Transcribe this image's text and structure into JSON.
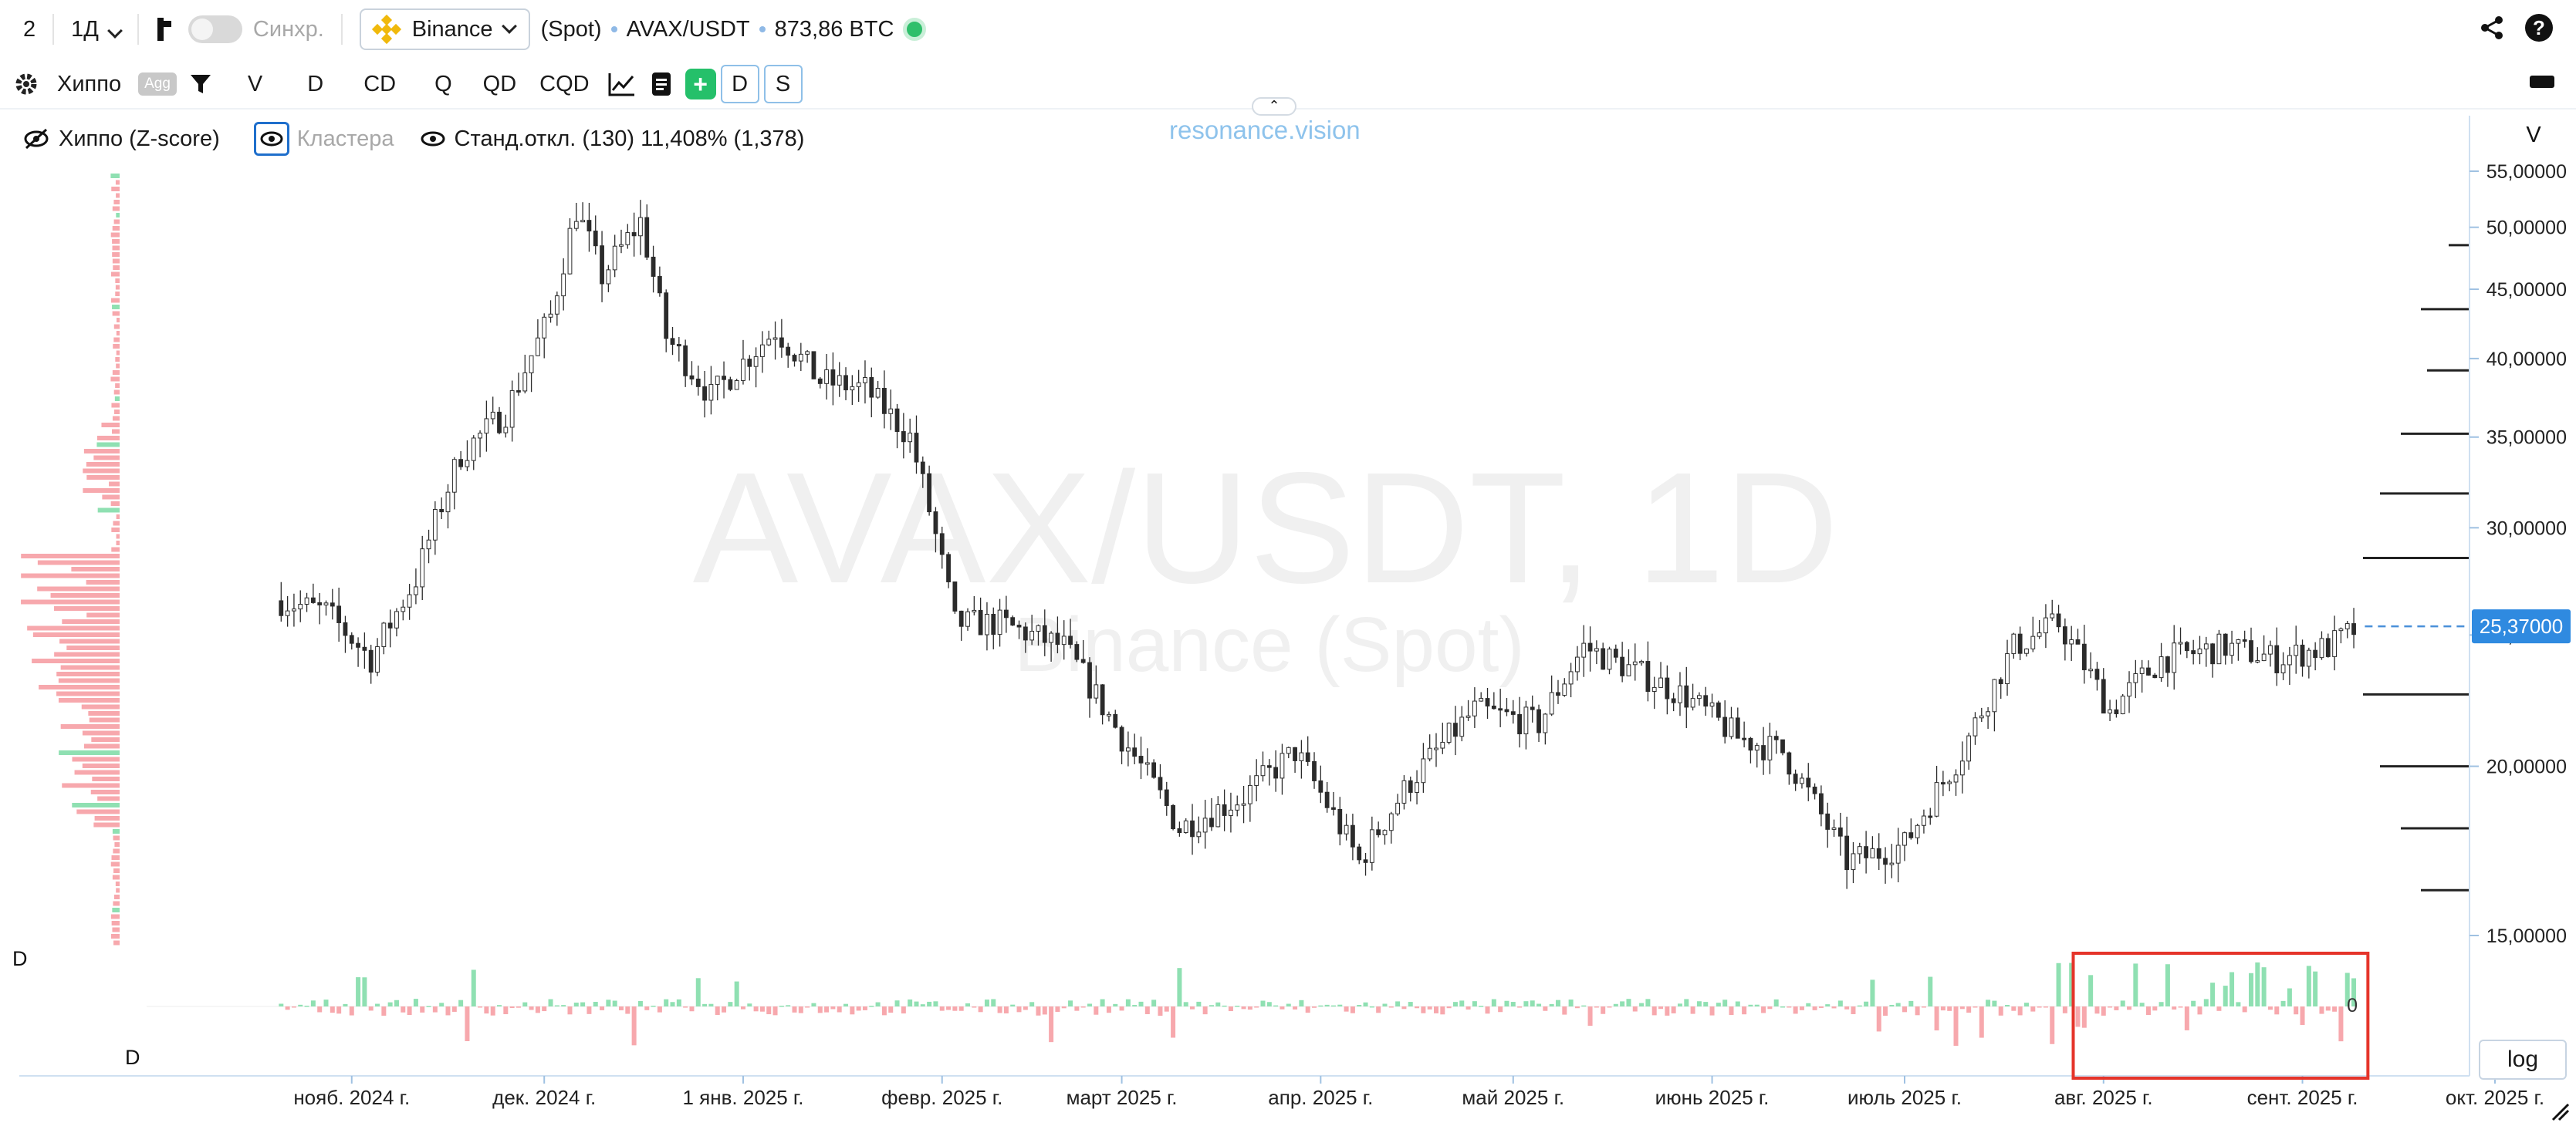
{
  "topbar": {
    "layout_count": "2",
    "interval": "1Д",
    "sync_label": "Синхр.",
    "exchange": "Binance",
    "market": "(Spot)",
    "pair": "AVAX/USDT",
    "volume": "873,86 BTC"
  },
  "toolbar": {
    "indicator": "Хиппо",
    "agg": "Agg",
    "buttons": [
      "V",
      "D",
      "CD",
      "Q",
      "QD",
      "CQD"
    ],
    "d_button": "D",
    "s_button": "S"
  },
  "legend": {
    "hippo": "Хиппо (Z-score)",
    "clusters": "Кластера",
    "stddev": "Станд.откл. (130) 11,408% (1,378)"
  },
  "brand": "resonance.vision",
  "watermark": {
    "line1": "AVAX/USDT, 1D",
    "line2": "Binance (Spot)"
  },
  "axis_title": "V",
  "log_label": "log",
  "colors": {
    "candle": "#2b2b2b",
    "buy": "#8fe0b2",
    "sell": "#f7a8ad",
    "price_line": "#4a90d9",
    "highlight": "#e5342a"
  },
  "chart_data": {
    "type": "candlestick",
    "pair": "AVAX/USDT",
    "timeframe": "1D",
    "yaxis": {
      "scale": "log",
      "ticks": [
        "55,00000",
        "50,00000",
        "45,00000",
        "40,00000",
        "35,00000",
        "30,00000",
        "25,00000",
        "20,00000",
        "15,00000"
      ],
      "tick_values": [
        55,
        50,
        45,
        40,
        35,
        30,
        25,
        20,
        15
      ]
    },
    "xaxis": {
      "ticks": [
        "нояб. 2024 г.",
        "дек. 2024 г.",
        "1 янв. 2025 г.",
        "февр. 2025 г.",
        "март 2025 г.",
        "апр. 2025 г.",
        "май 2025 г.",
        "июнь 2025 г.",
        "июль 2025 г.",
        "авг. 2025 г.",
        "сент. 2025 г.",
        "окт. 2025 г."
      ]
    },
    "last_price": "25,37000",
    "last_price_value": 25.37,
    "price_path": [
      {
        "date": "2024-10-21",
        "close": 26.5
      },
      {
        "date": "2024-10-28",
        "close": 26.0
      },
      {
        "date": "2024-11-04",
        "close": 24.0
      },
      {
        "date": "2024-11-11",
        "close": 27.5
      },
      {
        "date": "2024-11-18",
        "close": 34.0
      },
      {
        "date": "2024-11-25",
        "close": 36.5
      },
      {
        "date": "2024-12-02",
        "close": 43.0
      },
      {
        "date": "2024-12-06",
        "close": 51.5
      },
      {
        "date": "2024-12-10",
        "close": 46.0
      },
      {
        "date": "2024-12-16",
        "close": 50.5
      },
      {
        "date": "2024-12-20",
        "close": 41.5
      },
      {
        "date": "2024-12-27",
        "close": 37.5
      },
      {
        "date": "2025-01-06",
        "close": 42.0
      },
      {
        "date": "2025-01-13",
        "close": 38.5
      },
      {
        "date": "2025-01-20",
        "close": 38.0
      },
      {
        "date": "2025-01-27",
        "close": 35.0
      },
      {
        "date": "2025-02-03",
        "close": 25.5
      },
      {
        "date": "2025-02-10",
        "close": 25.5
      },
      {
        "date": "2025-02-20",
        "close": 24.5
      },
      {
        "date": "2025-03-01",
        "close": 21.0
      },
      {
        "date": "2025-03-10",
        "close": 18.0
      },
      {
        "date": "2025-03-20",
        "close": 19.0
      },
      {
        "date": "2025-03-28",
        "close": 20.5
      },
      {
        "date": "2025-04-07",
        "close": 17.0
      },
      {
        "date": "2025-04-15",
        "close": 19.5
      },
      {
        "date": "2025-04-25",
        "close": 22.0
      },
      {
        "date": "2025-05-05",
        "close": 21.5
      },
      {
        "date": "2025-05-12",
        "close": 24.5
      },
      {
        "date": "2025-05-20",
        "close": 23.5
      },
      {
        "date": "2025-05-28",
        "close": 22.5
      },
      {
        "date": "2025-06-05",
        "close": 21.0
      },
      {
        "date": "2025-06-12",
        "close": 20.5
      },
      {
        "date": "2025-06-22",
        "close": 17.0
      },
      {
        "date": "2025-07-01",
        "close": 17.5
      },
      {
        "date": "2025-07-10",
        "close": 20.5
      },
      {
        "date": "2025-07-18",
        "close": 24.5
      },
      {
        "date": "2025-07-25",
        "close": 25.5
      },
      {
        "date": "2025-08-02",
        "close": 22.0
      },
      {
        "date": "2025-08-10",
        "close": 24.0
      },
      {
        "date": "2025-08-20",
        "close": 24.5
      },
      {
        "date": "2025-08-28",
        "close": 24.0
      },
      {
        "date": "2025-09-05",
        "close": 24.5
      },
      {
        "date": "2025-09-10",
        "close": 25.37
      }
    ],
    "delta_label": "D",
    "delta_zero": "0",
    "highlight_period": [
      "2025-07-28",
      "2025-09-10"
    ]
  }
}
